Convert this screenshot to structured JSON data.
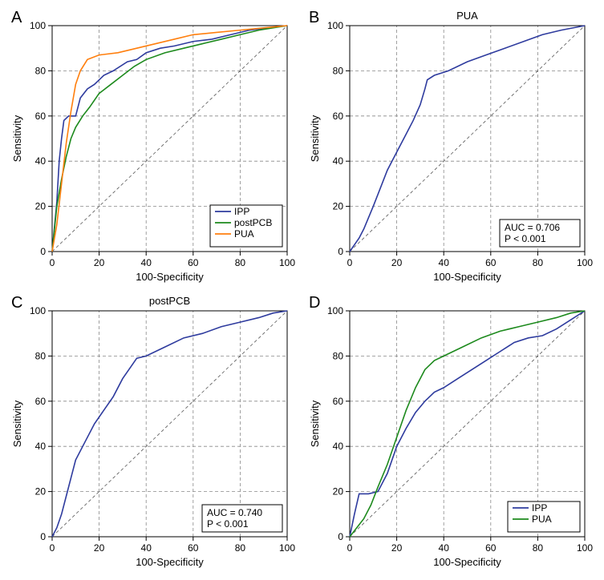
{
  "global": {
    "xlabel": "100-Specificity",
    "ylabel": "Sensitivity",
    "xlim": [
      0,
      100
    ],
    "ylim": [
      0,
      100
    ],
    "tick_step": 20,
    "grid_color": "#888888",
    "background_color": "#ffffff",
    "font_family": "Arial",
    "axis_label_fontsize": 13,
    "tick_fontsize": 12,
    "line_width": 1.6,
    "diag_dash": "4 3"
  },
  "panels": {
    "A": {
      "letter": "A",
      "title": "",
      "legend": {
        "items": [
          "IPP",
          "postPCB",
          "PUA"
        ],
        "position": "bottom-right"
      },
      "series": [
        {
          "name": "IPP",
          "color": "#2e3b9e",
          "points": [
            [
              0,
              0
            ],
            [
              2,
              22
            ],
            [
              3,
              40
            ],
            [
              4,
              50
            ],
            [
              5,
              58
            ],
            [
              7,
              60
            ],
            [
              10,
              60
            ],
            [
              12,
              68
            ],
            [
              15,
              72
            ],
            [
              18,
              74
            ],
            [
              22,
              78
            ],
            [
              26,
              80
            ],
            [
              32,
              84
            ],
            [
              36,
              85
            ],
            [
              40,
              88
            ],
            [
              46,
              90
            ],
            [
              52,
              91
            ],
            [
              60,
              93
            ],
            [
              68,
              94
            ],
            [
              76,
              96
            ],
            [
              84,
              98
            ],
            [
              92,
              99
            ],
            [
              100,
              100
            ]
          ]
        },
        {
          "name": "postPCB",
          "color": "#1d8a1d",
          "points": [
            [
              0,
              0
            ],
            [
              2,
              20
            ],
            [
              4,
              32
            ],
            [
              6,
              42
            ],
            [
              8,
              50
            ],
            [
              10,
              55
            ],
            [
              13,
              60
            ],
            [
              16,
              64
            ],
            [
              20,
              70
            ],
            [
              25,
              74
            ],
            [
              30,
              78
            ],
            [
              35,
              82
            ],
            [
              40,
              85
            ],
            [
              48,
              88
            ],
            [
              56,
              90
            ],
            [
              64,
              92
            ],
            [
              72,
              94
            ],
            [
              80,
              96
            ],
            [
              88,
              98
            ],
            [
              100,
              100
            ]
          ]
        },
        {
          "name": "PUA",
          "color": "#ff7f0e",
          "points": [
            [
              0,
              0
            ],
            [
              2,
              12
            ],
            [
              4,
              30
            ],
            [
              6,
              48
            ],
            [
              8,
              62
            ],
            [
              10,
              74
            ],
            [
              12,
              80
            ],
            [
              15,
              85
            ],
            [
              20,
              87
            ],
            [
              28,
              88
            ],
            [
              36,
              90
            ],
            [
              44,
              92
            ],
            [
              52,
              94
            ],
            [
              60,
              96
            ],
            [
              70,
              97
            ],
            [
              80,
              98
            ],
            [
              90,
              99
            ],
            [
              100,
              100
            ]
          ]
        }
      ]
    },
    "B": {
      "letter": "B",
      "title": "PUA",
      "annot": {
        "line1": "AUC = 0.706",
        "line2": "P < 0.001",
        "position": "bottom-right"
      },
      "series": [
        {
          "name": "PUA_single",
          "color": "#2e3b9e",
          "points": [
            [
              0,
              0
            ],
            [
              2,
              3
            ],
            [
              4,
              6
            ],
            [
              6,
              10
            ],
            [
              8,
              15
            ],
            [
              10,
              20
            ],
            [
              13,
              28
            ],
            [
              16,
              36
            ],
            [
              20,
              44
            ],
            [
              24,
              52
            ],
            [
              27,
              58
            ],
            [
              30,
              65
            ],
            [
              32,
              72
            ],
            [
              33,
              76
            ],
            [
              36,
              78
            ],
            [
              42,
              80
            ],
            [
              50,
              84
            ],
            [
              58,
              87
            ],
            [
              66,
              90
            ],
            [
              74,
              93
            ],
            [
              82,
              96
            ],
            [
              90,
              98
            ],
            [
              100,
              100
            ]
          ]
        }
      ]
    },
    "C": {
      "letter": "C",
      "title": "postPCB",
      "annot": {
        "line1": "AUC = 0.740",
        "line2": "P < 0.001",
        "position": "bottom-right"
      },
      "series": [
        {
          "name": "postPCB_single",
          "color": "#2e3b9e",
          "points": [
            [
              0,
              0
            ],
            [
              2,
              4
            ],
            [
              4,
              10
            ],
            [
              6,
              18
            ],
            [
              8,
              26
            ],
            [
              10,
              34
            ],
            [
              14,
              42
            ],
            [
              18,
              50
            ],
            [
              22,
              56
            ],
            [
              26,
              62
            ],
            [
              30,
              70
            ],
            [
              34,
              76
            ],
            [
              36,
              79
            ],
            [
              40,
              80
            ],
            [
              48,
              84
            ],
            [
              56,
              88
            ],
            [
              64,
              90
            ],
            [
              72,
              93
            ],
            [
              80,
              95
            ],
            [
              88,
              97
            ],
            [
              94,
              99
            ],
            [
              100,
              100
            ]
          ]
        }
      ]
    },
    "D": {
      "letter": "D",
      "title": "",
      "legend": {
        "items": [
          "IPP",
          "PUA"
        ],
        "position": "bottom-right"
      },
      "series": [
        {
          "name": "IPP",
          "color": "#2e3b9e",
          "points": [
            [
              0,
              0
            ],
            [
              2,
              10
            ],
            [
              4,
              19
            ],
            [
              8,
              19
            ],
            [
              12,
              20
            ],
            [
              16,
              28
            ],
            [
              20,
              40
            ],
            [
              24,
              48
            ],
            [
              28,
              55
            ],
            [
              32,
              60
            ],
            [
              36,
              64
            ],
            [
              40,
              66
            ],
            [
              46,
              70
            ],
            [
              52,
              74
            ],
            [
              58,
              78
            ],
            [
              64,
              82
            ],
            [
              70,
              86
            ],
            [
              76,
              88
            ],
            [
              82,
              89
            ],
            [
              88,
              92
            ],
            [
              94,
              96
            ],
            [
              100,
              100
            ]
          ]
        },
        {
          "name": "PUA",
          "color": "#1d8a1d",
          "points": [
            [
              0,
              0
            ],
            [
              3,
              4
            ],
            [
              6,
              8
            ],
            [
              9,
              14
            ],
            [
              12,
              22
            ],
            [
              16,
              32
            ],
            [
              20,
              44
            ],
            [
              24,
              56
            ],
            [
              28,
              66
            ],
            [
              32,
              74
            ],
            [
              36,
              78
            ],
            [
              40,
              80
            ],
            [
              48,
              84
            ],
            [
              56,
              88
            ],
            [
              64,
              91
            ],
            [
              72,
              93
            ],
            [
              80,
              95
            ],
            [
              88,
              97
            ],
            [
              94,
              99
            ],
            [
              100,
              100
            ]
          ]
        }
      ]
    }
  }
}
